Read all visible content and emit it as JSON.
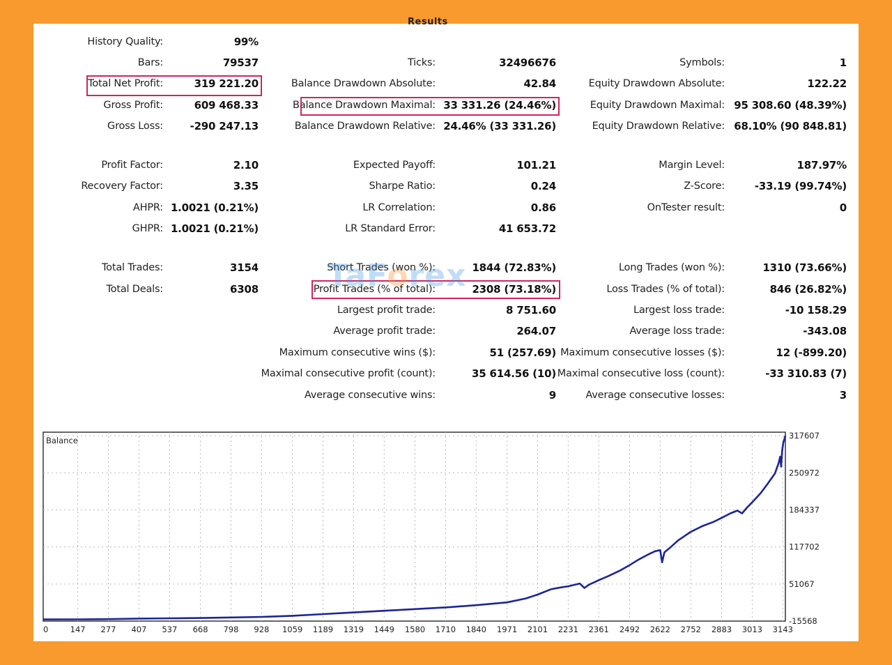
{
  "report": {
    "stats": {
      "col1": [
        {
          "label": "History Quality:",
          "value": "99%"
        },
        {
          "label": "Bars:",
          "value": "79537"
        },
        {
          "label": "Total Net Profit:",
          "value": "319 221.20"
        },
        {
          "label": "Gross Profit:",
          "value": "609 468.33"
        },
        {
          "label": "Gross Loss:",
          "value": "-290 247.13"
        },
        {
          "label": "Profit Factor:",
          "value": "2.10"
        },
        {
          "label": "Recovery Factor:",
          "value": "3.35"
        },
        {
          "label": "AHPR:",
          "value": "1.0021 (0.21%)"
        },
        {
          "label": "GHPR:",
          "value": "1.0021 (0.21%)"
        },
        {
          "label": "Total Trades:",
          "value": "3154"
        },
        {
          "label": "Total Deals:",
          "value": "6308"
        }
      ],
      "col2": [
        {
          "label": "Ticks:",
          "value": "32496676"
        },
        {
          "label": "Balance Drawdown Absolute:",
          "value": "42.84"
        },
        {
          "label": "Balance Drawdown Maximal:",
          "value": "33 331.26 (24.46%)"
        },
        {
          "label": "Balance Drawdown Relative:",
          "value": "24.46% (33 331.26)"
        },
        {
          "label": "Expected Payoff:",
          "value": "101.21"
        },
        {
          "label": "Sharpe Ratio:",
          "value": "0.24"
        },
        {
          "label": "LR Correlation:",
          "value": "0.86"
        },
        {
          "label": "LR Standard Error:",
          "value": "41 653.72"
        },
        {
          "label": "Short Trades (won %):",
          "value": "1844 (72.83%)"
        },
        {
          "label": "Profit Trades (% of total):",
          "value": "2308 (73.18%)"
        },
        {
          "label": "Largest profit trade:",
          "value": "8 751.60"
        },
        {
          "label": "Average profit trade:",
          "value": "264.07"
        },
        {
          "label": "Maximum consecutive wins ($):",
          "value": "51 (257.69)"
        },
        {
          "label": "Maximal consecutive profit (count):",
          "value": "35 614.56 (10)"
        },
        {
          "label": "Average consecutive wins:",
          "value": "9"
        }
      ],
      "col3": [
        {
          "label": "Symbols:",
          "value": "1"
        },
        {
          "label": "Equity Drawdown Absolute:",
          "value": "122.22"
        },
        {
          "label": "Equity Drawdown Maximal:",
          "value": "95 308.60 (48.39%)"
        },
        {
          "label": "Equity Drawdown Relative:",
          "value": "68.10% (90 848.81)"
        },
        {
          "label": "Margin Level:",
          "value": "187.97%"
        },
        {
          "label": "Z-Score:",
          "value": "-33.19 (99.74%)"
        },
        {
          "label": "OnTester result:",
          "value": "0"
        },
        {
          "label": "Long Trades (won %):",
          "value": "1310 (73.66%)"
        },
        {
          "label": "Loss Trades (% of total):",
          "value": "846 (26.82%)"
        },
        {
          "label": "Largest loss trade:",
          "value": "-10 158.29"
        },
        {
          "label": "Average loss trade:",
          "value": "-343.08"
        },
        {
          "label": "Maximum consecutive losses ($):",
          "value": "12 (-899.20)"
        },
        {
          "label": "Maximal consecutive loss (count):",
          "value": "-33 310.83 (7)"
        },
        {
          "label": "Average consecutive losses:",
          "value": "3"
        }
      ]
    },
    "watermark": {
      "part1": "TaF",
      "part2": "o",
      "part3": "rex"
    }
  },
  "chart_data": {
    "type": "line",
    "title": "Balance",
    "xlabel": "",
    "ylabel": "",
    "x_ticks": [
      0,
      147,
      277,
      407,
      537,
      668,
      798,
      928,
      1059,
      1189,
      1319,
      1449,
      1580,
      1710,
      1840,
      1971,
      2101,
      2231,
      2361,
      2492,
      2622,
      2752,
      2883,
      3013,
      3143
    ],
    "y_ticks": [
      -15568,
      51067,
      117702,
      184337,
      250972,
      317607
    ],
    "xlim": [
      0,
      3154
    ],
    "ylim": [
      -15568,
      324000
    ],
    "grid": true,
    "series": [
      {
        "color": "#1c2596",
        "points": [
          [
            0,
            -12500
          ],
          [
            147,
            -12400
          ],
          [
            277,
            -12000
          ],
          [
            407,
            -11000
          ],
          [
            537,
            -10500
          ],
          [
            668,
            -10000
          ],
          [
            798,
            -9000
          ],
          [
            928,
            -8000
          ],
          [
            1059,
            -6000
          ],
          [
            1189,
            -3000
          ],
          [
            1319,
            0
          ],
          [
            1449,
            3000
          ],
          [
            1580,
            6000
          ],
          [
            1710,
            9000
          ],
          [
            1840,
            13000
          ],
          [
            1971,
            18000
          ],
          [
            2050,
            25000
          ],
          [
            2101,
            32000
          ],
          [
            2160,
            42000
          ],
          [
            2200,
            45000
          ],
          [
            2231,
            47000
          ],
          [
            2280,
            52000
          ],
          [
            2300,
            44000
          ],
          [
            2320,
            50000
          ],
          [
            2361,
            58000
          ],
          [
            2400,
            65000
          ],
          [
            2450,
            75000
          ],
          [
            2492,
            85000
          ],
          [
            2530,
            95000
          ],
          [
            2570,
            104000
          ],
          [
            2600,
            110000
          ],
          [
            2622,
            112000
          ],
          [
            2630,
            90000
          ],
          [
            2640,
            108000
          ],
          [
            2660,
            115000
          ],
          [
            2700,
            130000
          ],
          [
            2752,
            145000
          ],
          [
            2800,
            155000
          ],
          [
            2850,
            163000
          ],
          [
            2883,
            170000
          ],
          [
            2920,
            178000
          ],
          [
            2950,
            183000
          ],
          [
            2970,
            178000
          ],
          [
            2990,
            188000
          ],
          [
            3013,
            198000
          ],
          [
            3050,
            215000
          ],
          [
            3080,
            232000
          ],
          [
            3110,
            250000
          ],
          [
            3125,
            268000
          ],
          [
            3132,
            280000
          ],
          [
            3136,
            262000
          ],
          [
            3140,
            290000
          ],
          [
            3145,
            305000
          ],
          [
            3154,
            317607
          ]
        ]
      }
    ]
  }
}
